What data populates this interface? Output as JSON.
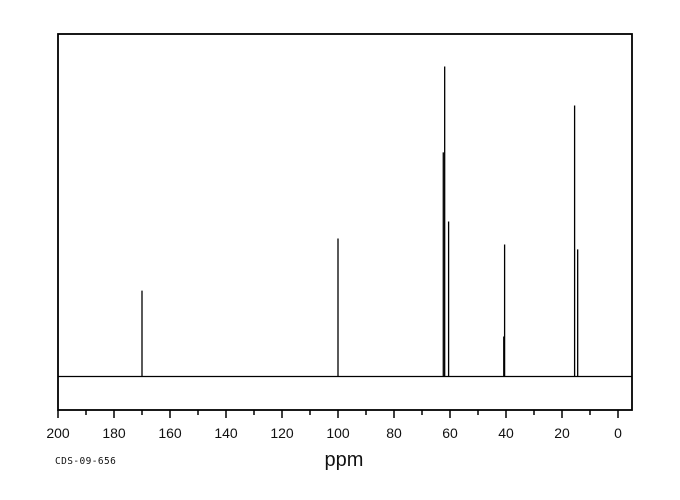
{
  "page": {
    "background": "#ffffff",
    "line_color": "#000000"
  },
  "labels": {
    "xlabel": "ppm",
    "sample_id": "CDS-09-656"
  },
  "chart_data": {
    "type": "line",
    "subtype": "13C-NMR-spectrum",
    "title": "",
    "xlabel": "ppm",
    "sample_id": "CDS-09-656",
    "x_axis": {
      "label": "ppm",
      "min": -5,
      "max": 200,
      "reversed": true,
      "major_ticks": [
        200,
        180,
        160,
        140,
        120,
        100,
        80,
        60,
        40,
        20,
        0
      ],
      "minor_ticks": [
        190,
        170,
        150,
        130,
        110,
        90,
        70,
        50,
        30,
        10
      ],
      "grid": false
    },
    "y_axis": {
      "visible": false
    },
    "baseline_intensity": 0,
    "peaks": [
      {
        "ppm": 170.0,
        "intensity": 0.277
      },
      {
        "ppm": 100.0,
        "intensity": 0.445
      },
      {
        "ppm": 62.4,
        "intensity": 0.723
      },
      {
        "ppm": 61.9,
        "intensity": 1.0
      },
      {
        "ppm": 60.5,
        "intensity": 0.5
      },
      {
        "ppm": 40.8,
        "intensity": 0.129
      },
      {
        "ppm": 40.5,
        "intensity": 0.426
      },
      {
        "ppm": 15.5,
        "intensity": 0.874
      },
      {
        "ppm": 14.4,
        "intensity": 0.41
      }
    ]
  }
}
